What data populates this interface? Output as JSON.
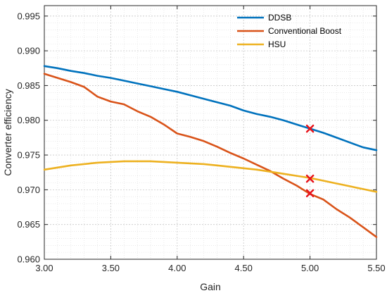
{
  "chart_data": {
    "type": "line",
    "xlabel": "Gain",
    "ylabel": "Converter efficiency",
    "xlim": [
      3.0,
      5.5
    ],
    "ylim": [
      0.96,
      0.9965
    ],
    "x_ticks": [
      3.0,
      3.5,
      4.0,
      4.5,
      5.0,
      5.5
    ],
    "x_tick_labels": [
      "3.00",
      "3.50",
      "4.00",
      "4.50",
      "5.00",
      "5.50"
    ],
    "y_ticks": [
      0.96,
      0.965,
      0.97,
      0.975,
      0.98,
      0.985,
      0.99,
      0.995
    ],
    "y_tick_labels": [
      "0.960",
      "0.965",
      "0.970",
      "0.975",
      "0.980",
      "0.985",
      "0.990",
      "0.995"
    ],
    "grid": true,
    "minor_grid": true,
    "legend_position": "top-right",
    "series": [
      {
        "name": "DDSB",
        "color": "#0072BD",
        "x": [
          3.0,
          3.1,
          3.2,
          3.3,
          3.4,
          3.5,
          3.6,
          3.7,
          3.8,
          3.9,
          4.0,
          4.1,
          4.2,
          4.3,
          4.4,
          4.5,
          4.6,
          4.7,
          4.8,
          4.9,
          5.0,
          5.1,
          5.2,
          5.3,
          5.4,
          5.5
        ],
        "values": [
          0.9878,
          0.9875,
          0.9871,
          0.9868,
          0.9864,
          0.9861,
          0.9857,
          0.9853,
          0.9849,
          0.9845,
          0.9841,
          0.9836,
          0.9831,
          0.9826,
          0.9821,
          0.9814,
          0.9809,
          0.9805,
          0.98,
          0.9794,
          0.9788,
          0.9782,
          0.9775,
          0.9768,
          0.9761,
          0.9757
        ]
      },
      {
        "name": "Conventional Boost",
        "color": "#D95319",
        "x": [
          3.0,
          3.1,
          3.2,
          3.3,
          3.4,
          3.5,
          3.6,
          3.7,
          3.8,
          3.9,
          4.0,
          4.1,
          4.2,
          4.3,
          4.4,
          4.5,
          4.6,
          4.7,
          4.8,
          4.9,
          5.0,
          5.1,
          5.2,
          5.3,
          5.4,
          5.5
        ],
        "values": [
          0.9867,
          0.9861,
          0.9855,
          0.9848,
          0.9834,
          0.9827,
          0.9823,
          0.9813,
          0.9805,
          0.9794,
          0.9781,
          0.9776,
          0.977,
          0.9762,
          0.9753,
          0.9745,
          0.9736,
          0.9727,
          0.9716,
          0.9706,
          0.9694,
          0.9686,
          0.9672,
          0.966,
          0.9646,
          0.9632
        ]
      },
      {
        "name": "HSU",
        "color": "#EDB120",
        "x": [
          3.0,
          3.1,
          3.2,
          3.3,
          3.4,
          3.5,
          3.6,
          3.7,
          3.8,
          3.9,
          4.0,
          4.1,
          4.2,
          4.3,
          4.4,
          4.5,
          4.6,
          4.7,
          4.8,
          4.9,
          5.0,
          5.1,
          5.2,
          5.3,
          5.4,
          5.5
        ],
        "values": [
          0.9729,
          0.9732,
          0.9735,
          0.9737,
          0.9739,
          0.974,
          0.9741,
          0.9741,
          0.9741,
          0.974,
          0.9739,
          0.9738,
          0.9737,
          0.9735,
          0.9733,
          0.9731,
          0.9729,
          0.9726,
          0.9723,
          0.972,
          0.9717,
          0.9713,
          0.9709,
          0.9705,
          0.9701,
          0.9697
        ]
      }
    ],
    "markers": [
      {
        "x": 5.0,
        "y": 0.9788,
        "symbol": "x",
        "color": "#E8141B"
      },
      {
        "x": 5.0,
        "y": 0.9716,
        "symbol": "x",
        "color": "#E8141B"
      },
      {
        "x": 5.0,
        "y": 0.9695,
        "symbol": "x",
        "color": "#E8141B"
      }
    ]
  }
}
